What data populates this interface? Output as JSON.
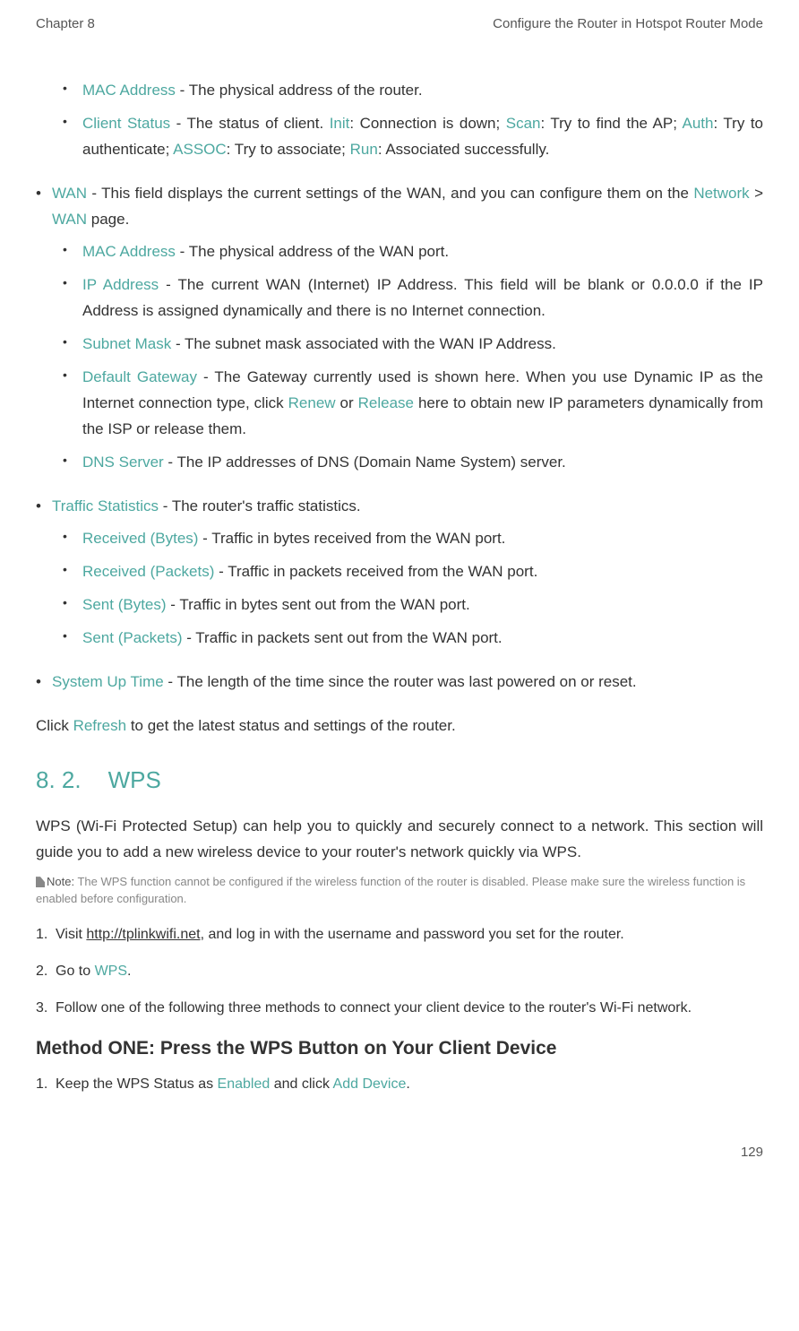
{
  "header": {
    "chapter": "Chapter 8",
    "title": "Configure the Router in Hotspot Router Mode"
  },
  "level2_items": [
    {
      "term": "MAC Address",
      "text": " - The physical address of the router."
    },
    {
      "term": "Client Status",
      "text_pre": " - The status of client. ",
      "init": "Init",
      "init_text": ": Connection is down; ",
      "scan": "Scan",
      "scan_text": ": Try to find the AP; ",
      "auth": "Auth",
      "auth_text": ": Try to authenticate; ",
      "assoc": "ASSOC",
      "assoc_text": ": Try to associate; ",
      "run": "Run",
      "run_text": ": Associated successfully."
    }
  ],
  "wan": {
    "term": "WAN",
    "text_pre": " - This field displays the current settings of the WAN, and you can configure them on the ",
    "network_text": "Network",
    "gt": " > ",
    "wan_text": "WAN",
    "text_post": " page.",
    "items": [
      {
        "term": "MAC Address",
        "text": " - The physical address of the WAN port."
      },
      {
        "term": "IP Address",
        "text": " - The current WAN (Internet) IP Address. This field will be blank or 0.0.0.0 if the IP Address is assigned dynamically and there is no Internet connection."
      },
      {
        "term": "Subnet Mask",
        "text": " - The subnet mask associated with the WAN IP Address."
      },
      {
        "term": "Default Gateway",
        "text_pre": " - The Gateway currently used is shown here. When you use Dynamic IP as the Internet connection type, click ",
        "renew": "Renew",
        "or_text": " or ",
        "release": "Release",
        "text_post": " here to obtain new IP parameters dynamically from the ISP or release them."
      },
      {
        "term": "DNS Server",
        "text": " - The IP addresses of DNS (Domain Name System) server."
      }
    ]
  },
  "traffic": {
    "term": "Traffic Statistics",
    "text": " - The router's traffic statistics.",
    "items": [
      {
        "term": "Received (Bytes)",
        "text": " - Traffic in bytes received from the WAN port."
      },
      {
        "term": "Received (Packets)",
        "text": " - Traffic in packets received from the WAN port."
      },
      {
        "term": "Sent (Bytes)",
        "text": " - Traffic in bytes sent out from the WAN port."
      },
      {
        "term": "Sent (Packets)",
        "text": " - Traffic in packets sent out from the WAN port."
      }
    ]
  },
  "uptime": {
    "term": "System Up Time",
    "text": " - The length of the time since the router was last powered on or reset."
  },
  "refresh_pre": "Click ",
  "refresh": "Refresh",
  "refresh_post": " to get the latest status and settings of the router.",
  "section": {
    "number": "8. 2.",
    "title": "WPS"
  },
  "wps_intro": "WPS (Wi-Fi Protected Setup) can help you to quickly and securely connect to a network. This section will guide you to add a new wireless device to your router's network quickly via WPS.",
  "note": {
    "label": "Note:",
    "text": " The WPS function cannot be configured if the wireless function of the router is disabled. Please make sure the wireless function is enabled before configuration."
  },
  "steps": {
    "step1_pre": "Visit ",
    "step1_link": "http://tplinkwifi.net",
    "step1_post": ", and log in with the username and password you set for the router.",
    "step2_pre": "Go to ",
    "step2_wps": "WPS",
    "step2_post": ".",
    "step3": "Follow one of the following three methods to connect your client device to the router's Wi-Fi network."
  },
  "method_heading": "Method ONE: Press the WPS Button on Your Client Device",
  "method_step1_pre": "Keep the WPS Status as ",
  "method_step1_enabled": "Enabled",
  "method_step1_mid": " and click ",
  "method_step1_add": "Add Device",
  "method_step1_post": ".",
  "footer": {
    "page": "129"
  }
}
